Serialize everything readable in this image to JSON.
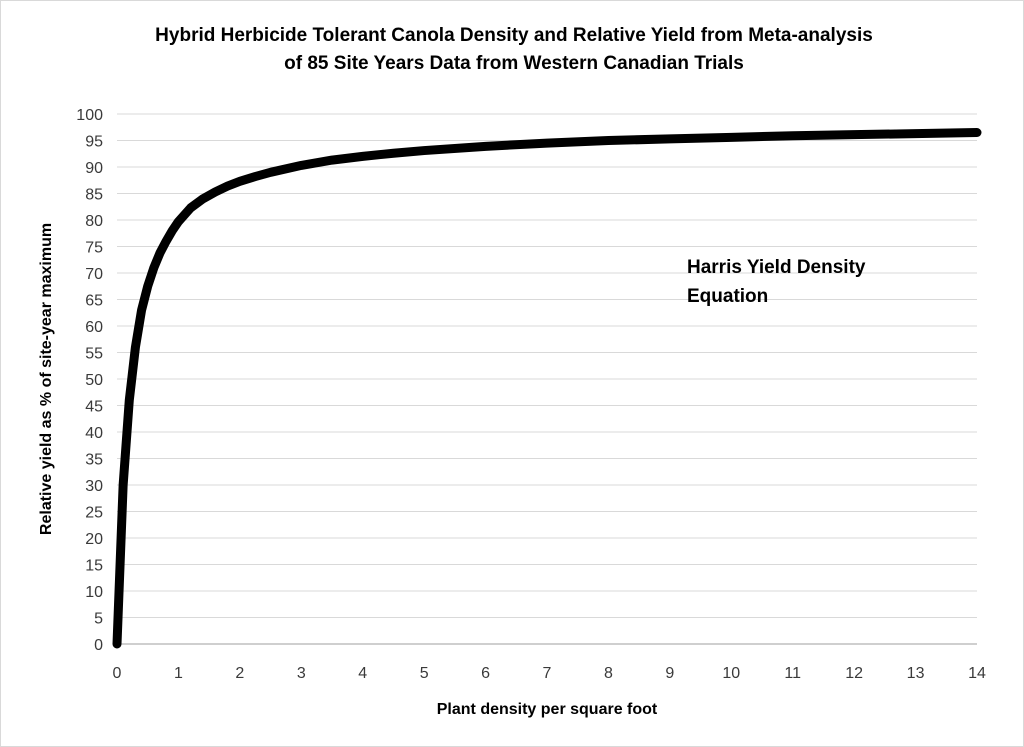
{
  "chart_data": {
    "type": "line",
    "title_lines": [
      "Hybrid Herbicide Tolerant Canola Density and Relative Yield from Meta-analysis",
      "of 85 Site Years Data from Western Canadian Trials"
    ],
    "xlabel": "Plant density per square foot",
    "ylabel": "Relative yield as % of site-year maximum",
    "xlim": [
      0,
      14
    ],
    "ylim": [
      0,
      100
    ],
    "x_ticks": [
      0,
      1,
      2,
      3,
      4,
      5,
      6,
      7,
      8,
      9,
      10,
      11,
      12,
      13,
      14
    ],
    "y_ticks": [
      0,
      5,
      10,
      15,
      20,
      25,
      30,
      35,
      40,
      45,
      50,
      55,
      60,
      65,
      70,
      75,
      80,
      85,
      90,
      95,
      100
    ],
    "grid": "horizontal",
    "annotation_lines": [
      "Harris Yield Density",
      "Equation"
    ],
    "colors": {
      "line": "#000000",
      "grid": "#d9d9d9",
      "axis": "#bfbfbf"
    },
    "series": [
      {
        "x": [
          0,
          0.1,
          0.2,
          0.3,
          0.4,
          0.5,
          0.6,
          0.7,
          0.8,
          0.9,
          1.0,
          1.2,
          1.4,
          1.6,
          1.8,
          2.0,
          2.25,
          2.5,
          3.0,
          3.5,
          4.0,
          4.5,
          5.0,
          6.0,
          7.0,
          8.0,
          9.0,
          10.0,
          11.0,
          12.0,
          13.0,
          14.0
        ],
        "values": [
          0,
          30,
          46,
          56,
          63,
          67.5,
          71,
          73.8,
          76,
          78,
          79.7,
          82.3,
          84,
          85.3,
          86.4,
          87.3,
          88.2,
          89,
          90.3,
          91.3,
          92,
          92.6,
          93.1,
          93.9,
          94.5,
          95,
          95.3,
          95.6,
          95.9,
          96.1,
          96.3,
          96.5
        ]
      }
    ]
  }
}
